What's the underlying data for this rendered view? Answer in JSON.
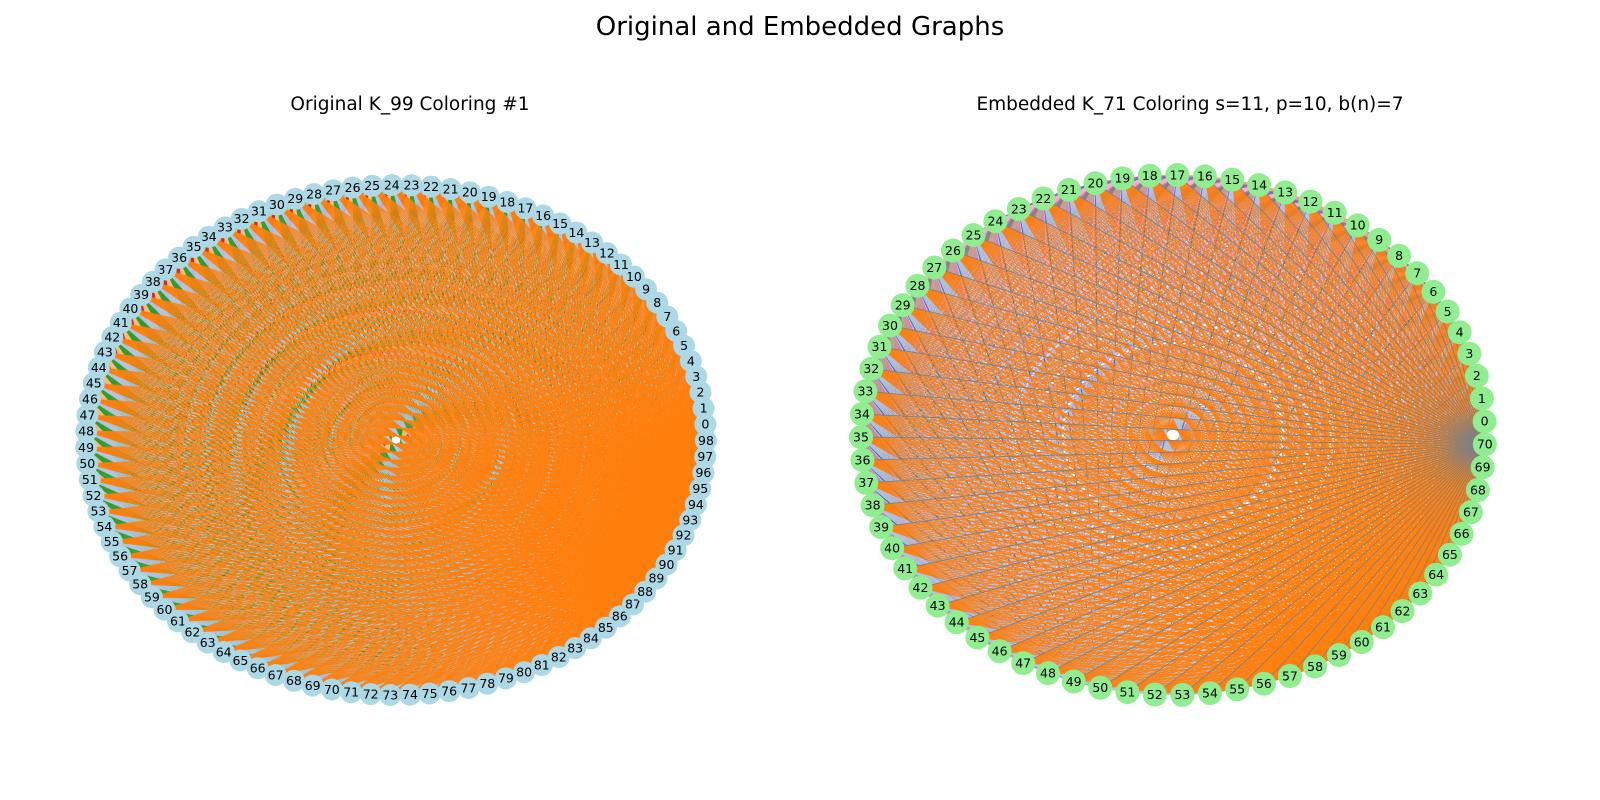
{
  "figure_title": "Original and Embedded Graphs",
  "graphs": [
    {
      "id": "left",
      "title": "Original K_99 Coloring #1",
      "n": 99,
      "node_color": "#add8e6",
      "palette": [
        "#ff9896",
        "#8c564b",
        "#c5b0d5",
        "#e377c2",
        "#c49c94",
        "#7f7f7f",
        "#98df8a",
        "#d62728",
        "#ffbb78",
        "#2ca02c",
        "#aec7e8",
        "#ff7f0e",
        "#9467bd",
        "#f7b6d2",
        "#1f77b4"
      ],
      "edge_colors_by_node": [
        "#7f7f7f",
        "#7f7f7f",
        "#7f7f7f",
        "#7f7f7f",
        "#7f7f7f",
        "#7f7f7f",
        "#7f7f7f",
        "#7f7f7f",
        "#7f7f7f",
        "#7f7f7f",
        "#c49c94",
        "#c49c94",
        "#c49c94",
        "#c49c94",
        "#c49c94",
        "#c49c94",
        "#c49c94",
        "#c49c94",
        "#c49c94",
        "#c49c94",
        "#e377c2",
        "#e377c2",
        "#e377c2",
        "#e377c2",
        "#e377c2",
        "#e377c2",
        "#e377c2",
        "#e377c2",
        "#e377c2",
        "#e377c2",
        "#c5b0d5",
        "#c5b0d5",
        "#c5b0d5",
        "#c5b0d5",
        "#c5b0d5",
        "#c5b0d5",
        "#c5b0d5",
        "#8c564b",
        "#8c564b",
        "#8c564b",
        "#8c564b",
        "#8c564b",
        "#8c564b",
        "#ff9896",
        "#ff9896",
        "#ff9896",
        "#ff9896",
        "#ff9896",
        "#ff9896",
        "#9467bd",
        "#98df8a",
        "#98df8a",
        "#98df8a",
        "#98df8a",
        "#98df8a",
        "#98df8a",
        "#98df8a",
        "#d62728",
        "#d62728",
        "#d62728",
        "#d62728",
        "#d62728",
        "#d62728",
        "#d62728",
        "#ffbb78",
        "#ffbb78",
        "#ffbb78",
        "#ffbb78",
        "#ffbb78",
        "#ffbb78",
        "#ffbb78",
        "#ffbb78",
        "#2ca02c",
        "#2ca02c",
        "#2ca02c",
        "#2ca02c",
        "#2ca02c",
        "#2ca02c",
        "#2ca02c",
        "#2ca02c",
        "#aec7e8",
        "#aec7e8",
        "#aec7e8",
        "#aec7e8",
        "#aec7e8",
        "#aec7e8",
        "#aec7e8",
        "#ff7f0e",
        "#ff7f0e",
        "#ff7f0e",
        "#ff7f0e",
        "#ff7f0e",
        "#ff7f0e",
        "#ff7f0e",
        "#ff7f0e",
        "#ff7f0e",
        "#ff7f0e",
        "#ff7f0e",
        "#ff7f0e"
      ]
    },
    {
      "id": "right",
      "title": "Embedded K_71 Coloring s=11, p=10, b(n)=7",
      "n": 71,
      "node_color": "#90ee90",
      "palette": [
        "#ff9896",
        "#8c564b",
        "#9467bd",
        "#f7b6d2",
        "#e377c2",
        "#7f7f7f",
        "#c49c94",
        "#aec7e8",
        "#ff7f0e",
        "#1f77b4",
        "#2ca02c",
        "#d62728",
        "#c5b0d5"
      ],
      "edge_colors_by_node": [
        "#c5b0d5",
        "#c5b0d5",
        "#c5b0d5",
        "#c5b0d5",
        "#c5b0d5",
        "#8c564b",
        "#8c564b",
        "#8c564b",
        "#8c564b",
        "#8c564b",
        "#8c564b",
        "#ff9896",
        "#ff9896",
        "#ff9896",
        "#ff9896",
        "#ff9896",
        "#ff9896",
        "#ff9896",
        "#ff9896",
        "#ff9896",
        "#9467bd",
        "#9467bd",
        "#9467bd",
        "#9467bd",
        "#9467bd",
        "#9467bd",
        "#f7b6d2",
        "#f7b6d2",
        "#f7b6d2",
        "#f7b6d2",
        "#f7b6d2",
        "#f7b6d2",
        "#f7b6d2",
        "#e377c2",
        "#e377c2",
        "#7f7f7f",
        "#7f7f7f",
        "#7f7f7f",
        "#7f7f7f",
        "#7f7f7f",
        "#c49c94",
        "#c49c94",
        "#c49c94",
        "#c49c94",
        "#c49c94",
        "#c49c94",
        "#c49c94",
        "#c49c94",
        "#e377c2",
        "#f7b6d2",
        "#1f77b4",
        "#aec7e8",
        "#aec7e8",
        "#aec7e8",
        "#aec7e8",
        "#aec7e8",
        "#aec7e8",
        "#ff7f0e",
        "#ff7f0e",
        "#ff7f0e",
        "#ff7f0e",
        "#ff7f0e",
        "#ff7f0e",
        "#ff7f0e",
        "#ff7f0e",
        "#ff7f0e",
        "#ff7f0e",
        "#ff7f0e",
        "#ff7f0e",
        "#ff7f0e",
        "#7f7f7f"
      ]
    }
  ]
}
